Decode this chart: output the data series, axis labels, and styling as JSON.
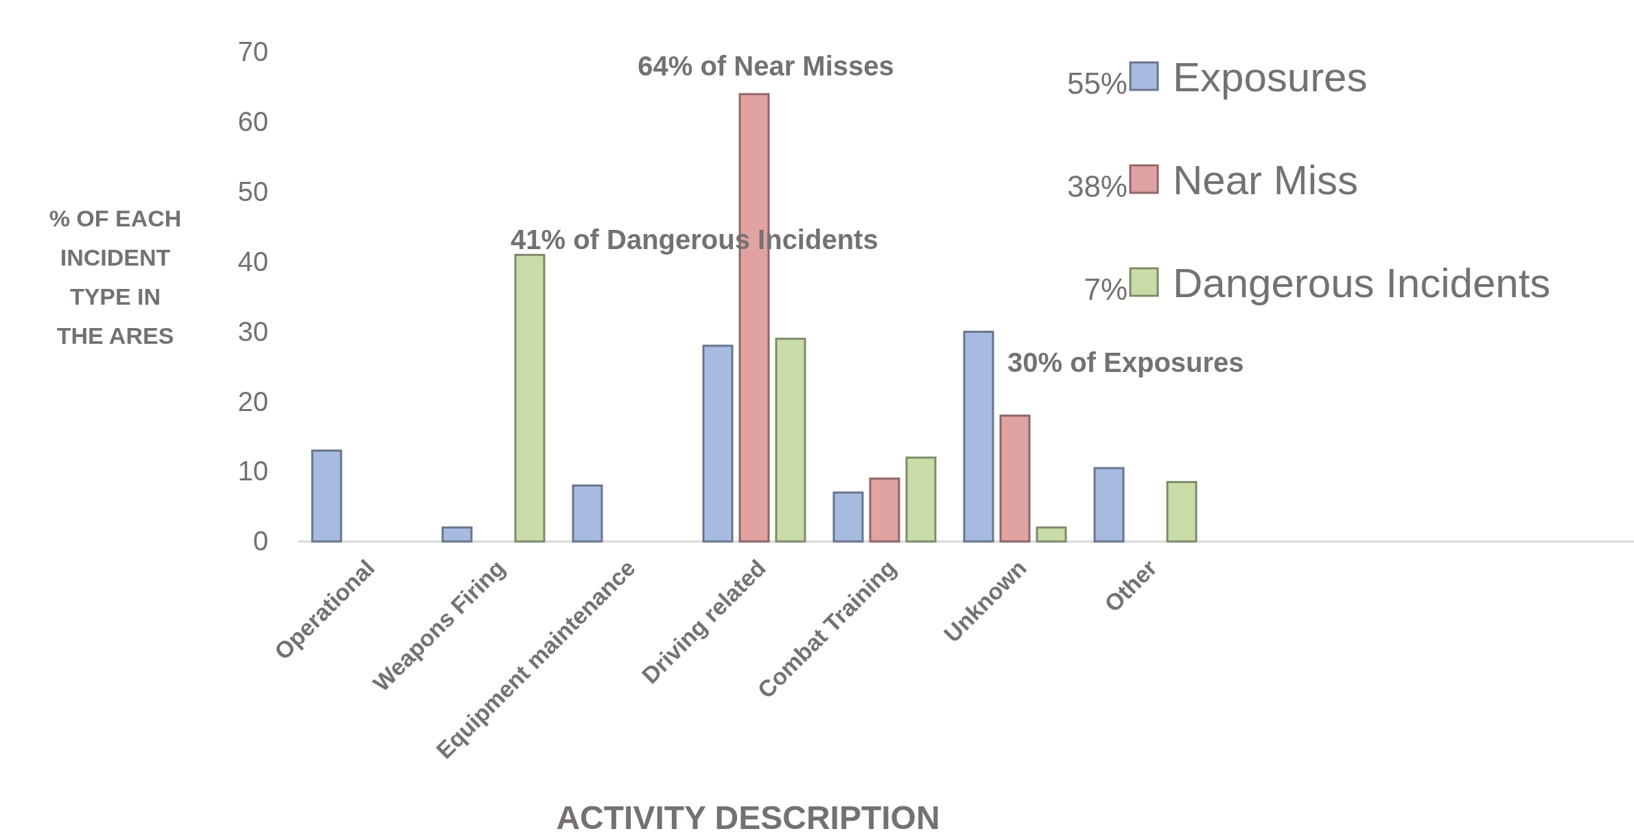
{
  "chart_data": {
    "type": "bar",
    "xlabel": "ACTIVITY DESCRIPTION",
    "ylabel": "% OF EACH INCIDENT TYPE IN THE ARES",
    "categories": [
      "Operational",
      "Weapons Firing",
      "Equipment maintenance",
      "Driving related",
      "Combat Training",
      "Unknown",
      "Other",
      null,
      null,
      null
    ],
    "series": [
      {
        "name": "Exposures",
        "color": "#a6bbdf",
        "values": [
          13,
          2,
          8,
          28,
          7,
          30,
          10.5,
          null,
          null,
          null
        ]
      },
      {
        "name": "Near Miss",
        "color": "#e0a3a2",
        "values": [
          null,
          null,
          null,
          64,
          9,
          18,
          null,
          null,
          null,
          null
        ]
      },
      {
        "name": "Dangerous Incidents",
        "color": "#c9dca8",
        "values": [
          null,
          41,
          null,
          29,
          12,
          2,
          8.5,
          null,
          null,
          null
        ]
      }
    ],
    "ylim": [
      0,
      70
    ],
    "yticks": [
      0,
      10,
      20,
      30,
      40,
      50,
      60,
      70
    ],
    "grid": false,
    "legend": "top right",
    "annotations": [
      "55%",
      "38%",
      "7%",
      "64% of Near Misses",
      "41% of Dangerous Incidents",
      "30% of Exposures"
    ]
  }
}
